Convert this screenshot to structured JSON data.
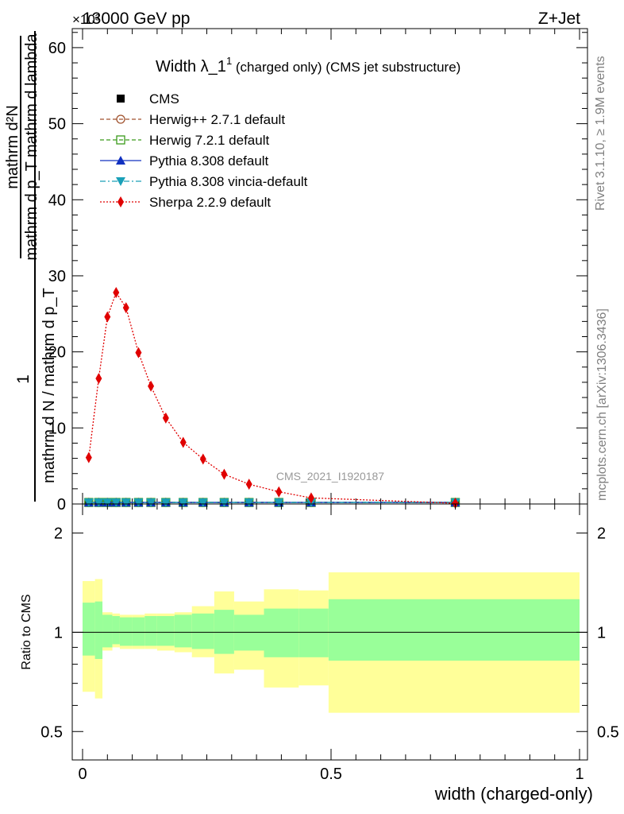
{
  "header": {
    "left": "13000 GeV pp",
    "right": "Z+Jet",
    "multiplier": "×10³"
  },
  "side_labels": {
    "rivet": "Rivet 3.1.10, ≥ 1.9M events",
    "mcplots": "mcplots.cern.ch [arXiv:1306.3436]"
  },
  "watermark": "CMS_2021_I1920187",
  "main_plot": {
    "title_main": "Width λ_1",
    "title_sup": "1",
    "title_rest": " (charged only) (CMS jet substructure)",
    "ylabel_num": "1",
    "ylabel_den": "mathrm d N / mathrm d p_T",
    "ylabel_frac_num": "mathrm d²N",
    "ylabel_frac_den": "mathrm d p_T mathrm d lambda",
    "yticks": [
      "0",
      "10",
      "20",
      "30",
      "40",
      "50",
      "60"
    ]
  },
  "legend": [
    {
      "label": "CMS",
      "color": "#000000",
      "marker": "square-filled",
      "line": "none"
    },
    {
      "label": "Herwig++ 2.7.1 default",
      "color": "#a0522d",
      "marker": "circle-open",
      "line": "dashed"
    },
    {
      "label": "Herwig 7.2.1 default",
      "color": "#3a9a1a",
      "marker": "square-open",
      "line": "dashed"
    },
    {
      "label": "Pythia 8.308 default",
      "color": "#1030c0",
      "marker": "triangle-up",
      "line": "solid"
    },
    {
      "label": "Pythia 8.308 vincia-default",
      "color": "#1aa0b8",
      "marker": "triangle-down",
      "line": "dashdot"
    },
    {
      "label": "Sherpa 2.2.9 default",
      "color": "#e00000",
      "marker": "diamond",
      "line": "dotted"
    }
  ],
  "ratio_plot": {
    "ylabel": "Ratio to CMS",
    "yticks": [
      "0.5",
      "1",
      "2"
    ],
    "xlabel": "width (charged-only)",
    "xticks": [
      "0",
      "0.5",
      "1"
    ]
  },
  "chart_data": {
    "type": "line",
    "xlabel": "width (charged-only)",
    "ylabel": "1 / (mathrm d N / mathrm d p_T) · mathrm d²N / (mathrm d p_T mathrm d lambda)",
    "xlim": [
      0,
      1
    ],
    "ylim": [
      0,
      62.5
    ],
    "y_multiplier": 1000,
    "x": [
      0.0125,
      0.0325,
      0.05,
      0.0675,
      0.0875,
      0.1125,
      0.1375,
      0.1675,
      0.2025,
      0.2425,
      0.285,
      0.335,
      0.395,
      0.46,
      0.75
    ],
    "series": [
      {
        "name": "CMS",
        "values": [
          0.2,
          0.2,
          0.2,
          0.2,
          0.2,
          0.2,
          0.2,
          0.2,
          0.2,
          0.2,
          0.2,
          0.2,
          0.2,
          0.2,
          0.2
        ]
      },
      {
        "name": "Herwig++ 2.7.1 default",
        "values": [
          0.2,
          0.2,
          0.2,
          0.2,
          0.2,
          0.2,
          0.2,
          0.2,
          0.2,
          0.2,
          0.2,
          0.2,
          0.2,
          0.2,
          0.2
        ]
      },
      {
        "name": "Herwig 7.2.1 default",
        "values": [
          0.2,
          0.2,
          0.2,
          0.2,
          0.2,
          0.2,
          0.2,
          0.2,
          0.2,
          0.2,
          0.2,
          0.2,
          0.2,
          0.2,
          0.2
        ]
      },
      {
        "name": "Pythia 8.308 default",
        "values": [
          0.2,
          0.2,
          0.2,
          0.2,
          0.2,
          0.2,
          0.2,
          0.2,
          0.2,
          0.2,
          0.2,
          0.2,
          0.2,
          0.2,
          0.2
        ]
      },
      {
        "name": "Pythia 8.308 vincia-default",
        "values": [
          0.2,
          0.2,
          0.2,
          0.2,
          0.2,
          0.2,
          0.2,
          0.2,
          0.2,
          0.2,
          0.2,
          0.2,
          0.2,
          0.2,
          0.2
        ]
      },
      {
        "name": "Sherpa 2.2.9 default",
        "values": [
          6.1,
          16.5,
          24.6,
          27.8,
          25.8,
          19.9,
          15.5,
          11.3,
          8.1,
          5.9,
          3.9,
          2.6,
          1.6,
          0.8,
          0.1
        ]
      }
    ],
    "ratio": {
      "ylim": [
        0.41,
        2.45
      ],
      "log_scale": true,
      "reference": 1,
      "bins": [
        {
          "lo": 0.0,
          "hi": 0.025,
          "green": [
            0.85,
            1.23
          ],
          "yellow": [
            0.66,
            1.43
          ]
        },
        {
          "lo": 0.025,
          "hi": 0.04,
          "green": [
            0.83,
            1.24
          ],
          "yellow": [
            0.63,
            1.45
          ]
        },
        {
          "lo": 0.04,
          "hi": 0.06,
          "green": [
            0.9,
            1.13
          ],
          "yellow": [
            0.88,
            1.15
          ]
        },
        {
          "lo": 0.06,
          "hi": 0.075,
          "green": [
            0.92,
            1.12
          ],
          "yellow": [
            0.9,
            1.14
          ]
        },
        {
          "lo": 0.075,
          "hi": 0.1,
          "green": [
            0.91,
            1.11
          ],
          "yellow": [
            0.89,
            1.13
          ]
        },
        {
          "lo": 0.1,
          "hi": 0.125,
          "green": [
            0.91,
            1.11
          ],
          "yellow": [
            0.89,
            1.13
          ]
        },
        {
          "lo": 0.125,
          "hi": 0.15,
          "green": [
            0.91,
            1.12
          ],
          "yellow": [
            0.89,
            1.14
          ]
        },
        {
          "lo": 0.15,
          "hi": 0.185,
          "green": [
            0.91,
            1.12
          ],
          "yellow": [
            0.88,
            1.14
          ]
        },
        {
          "lo": 0.185,
          "hi": 0.22,
          "green": [
            0.9,
            1.13
          ],
          "yellow": [
            0.87,
            1.15
          ]
        },
        {
          "lo": 0.22,
          "hi": 0.265,
          "green": [
            0.89,
            1.14
          ],
          "yellow": [
            0.84,
            1.2
          ]
        },
        {
          "lo": 0.265,
          "hi": 0.305,
          "green": [
            0.86,
            1.17
          ],
          "yellow": [
            0.75,
            1.33
          ]
        },
        {
          "lo": 0.305,
          "hi": 0.365,
          "green": [
            0.88,
            1.13
          ],
          "yellow": [
            0.77,
            1.24
          ]
        },
        {
          "lo": 0.365,
          "hi": 0.435,
          "green": [
            0.84,
            1.18
          ],
          "yellow": [
            0.68,
            1.35
          ]
        },
        {
          "lo": 0.435,
          "hi": 0.495,
          "green": [
            0.84,
            1.18
          ],
          "yellow": [
            0.69,
            1.34
          ]
        },
        {
          "lo": 0.495,
          "hi": 1.0,
          "green": [
            0.82,
            1.26
          ],
          "yellow": [
            0.57,
            1.52
          ]
        }
      ]
    }
  }
}
